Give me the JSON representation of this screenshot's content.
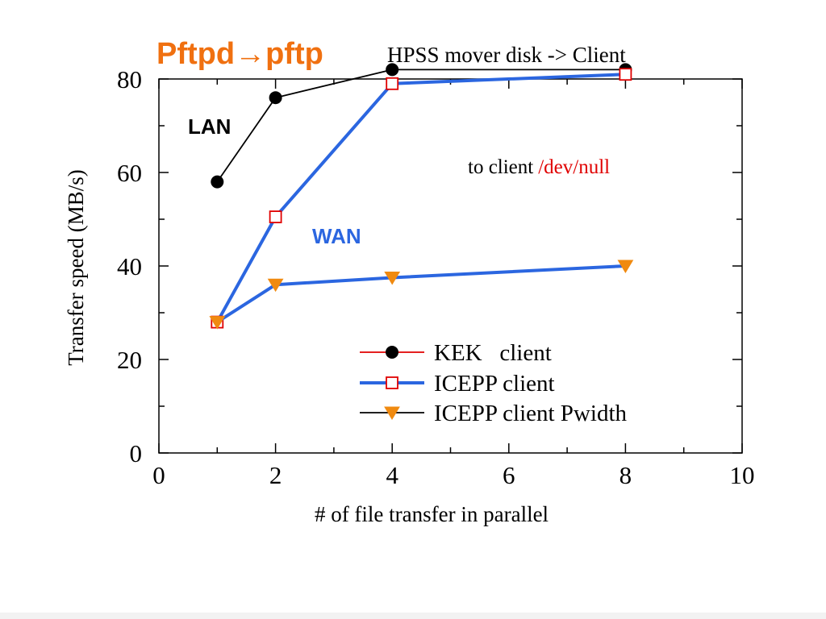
{
  "heading": {
    "main": "Pftpd→pftp",
    "sub": "HPSS mover disk -> Client",
    "main_color": "#f07010"
  },
  "annotations": {
    "lan": "LAN",
    "wan": "WAN",
    "note_prefix": "to client",
    "note_highlight": "/dev/null",
    "note_highlight_color": "#e00000",
    "wan_color": "#2b66e0"
  },
  "chart_data": {
    "type": "line",
    "title": "",
    "xlabel": "# of file transfer in parallel",
    "ylabel": "Transfer speed (MB/s)",
    "xlim": [
      0,
      10
    ],
    "ylim": [
      0,
      80
    ],
    "xticks": [
      0,
      2,
      4,
      6,
      8,
      10
    ],
    "yticks": [
      0,
      20,
      40,
      60,
      80
    ],
    "grid": false,
    "legend_position": "bottom-right",
    "series": [
      {
        "name": "KEK   client",
        "x": [
          1,
          2,
          4,
          8
        ],
        "y": [
          58,
          76,
          82,
          82
        ],
        "line_color": "#000000",
        "legend_line_color": "#e00000",
        "marker": "filled-circle",
        "marker_color": "#000000"
      },
      {
        "name": "ICEPP client",
        "x": [
          1,
          2,
          4,
          8
        ],
        "y": [
          28,
          50.5,
          79,
          81
        ],
        "line_color": "#2b66e0",
        "legend_line_color": "#2b66e0",
        "marker": "open-square",
        "marker_color": "#e00000"
      },
      {
        "name": "ICEPP client Pwidth",
        "x": [
          1,
          2,
          4,
          8
        ],
        "y": [
          28,
          36,
          37.5,
          40
        ],
        "line_color": "#2b66e0",
        "legend_line_color": "#000000",
        "marker": "filled-down-triangle",
        "marker_color": "#f08a10"
      }
    ]
  }
}
